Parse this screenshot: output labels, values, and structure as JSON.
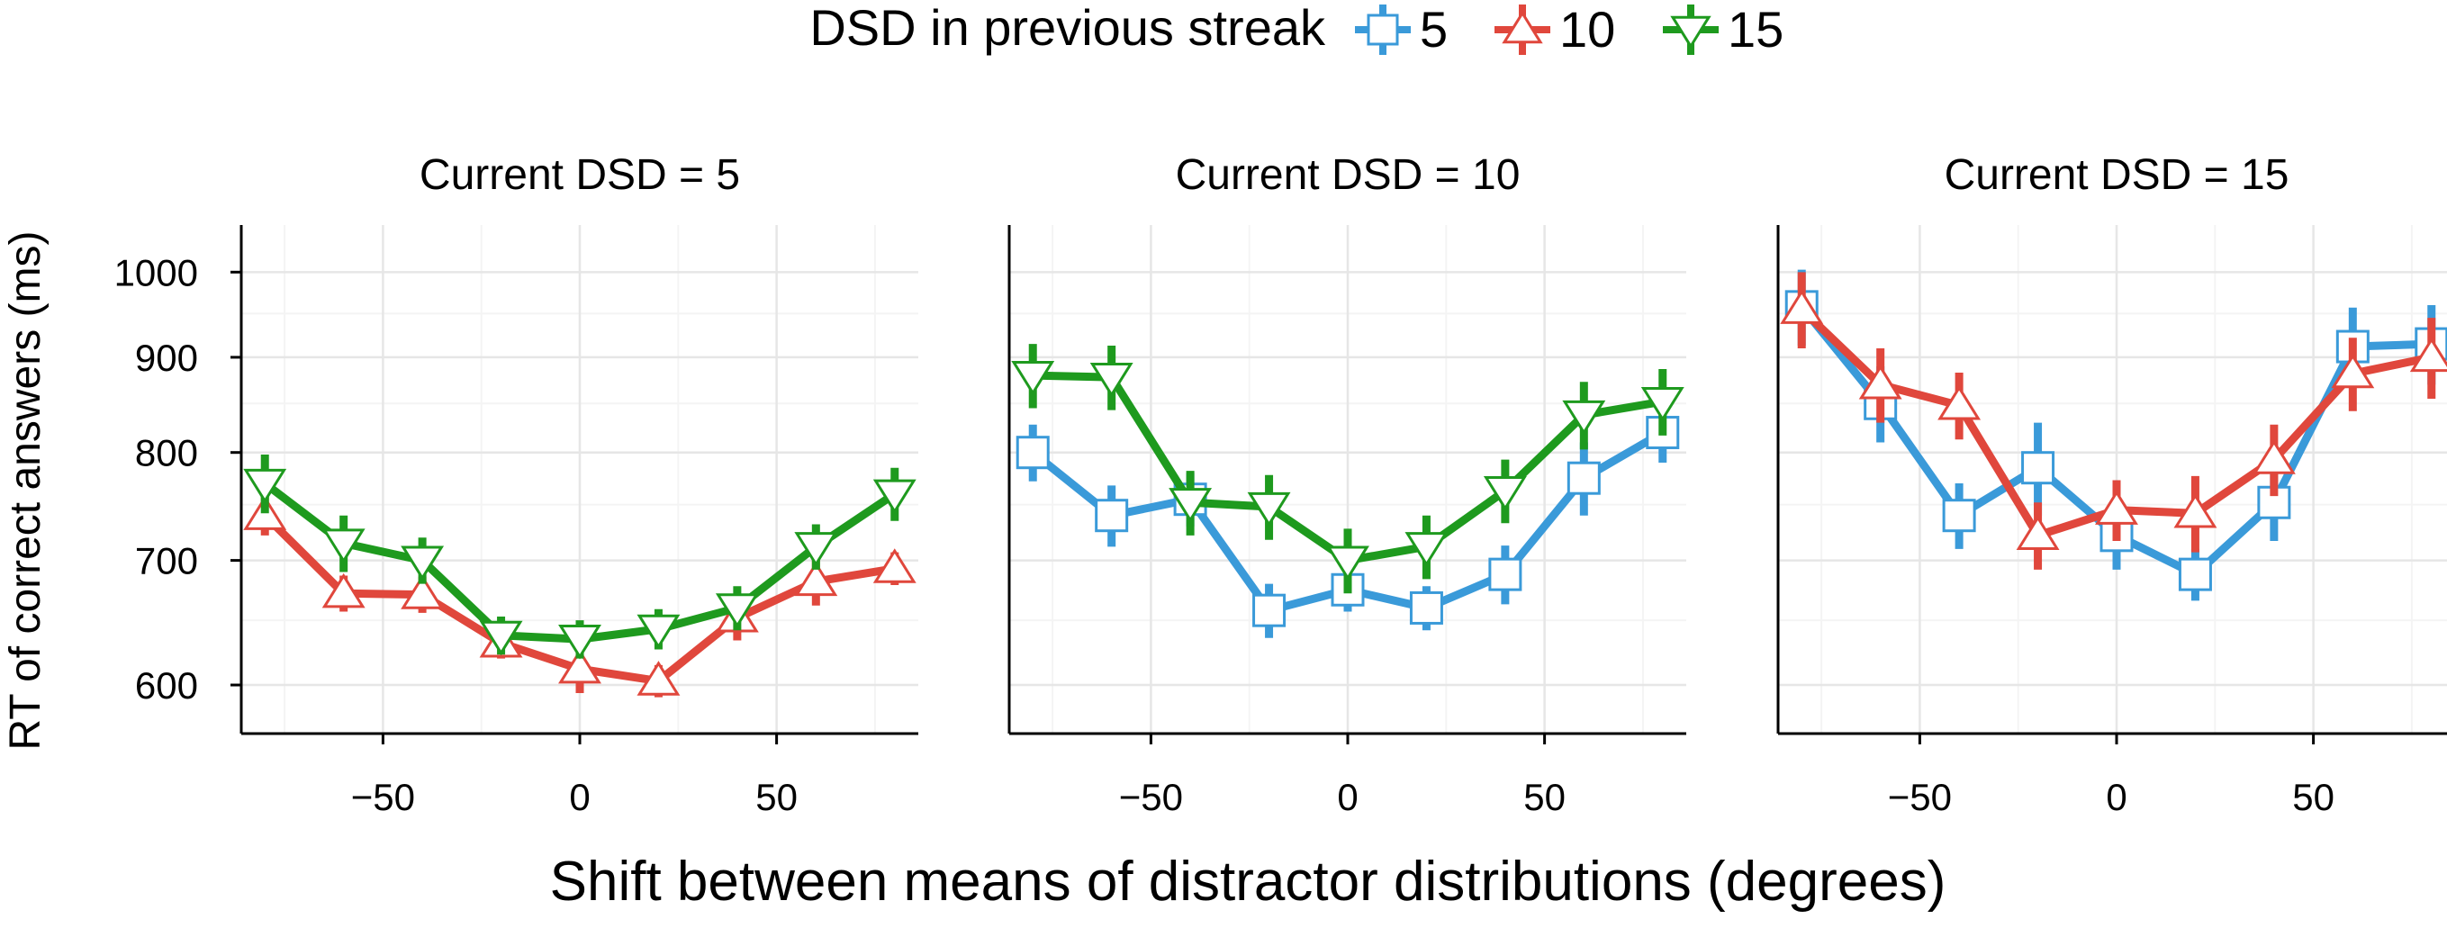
{
  "legend": {
    "title": "DSD in previous streak",
    "entries": [
      {
        "label": "5",
        "color": "#3a9ad9",
        "marker": "square"
      },
      {
        "label": "10",
        "color": "#e0473c",
        "marker": "triangle-up"
      },
      {
        "label": "15",
        "color": "#1e9a1e",
        "marker": "triangle-down"
      }
    ]
  },
  "xlabel": "Shift between means of distractor distributions (degrees)",
  "ylabel": "RT of correct answers (ms)",
  "chart_data": {
    "type": "line",
    "y_scale": "log",
    "xlim": [
      -86,
      86
    ],
    "ylim": [
      565,
      1060
    ],
    "x_ticks": [
      -50,
      0,
      50
    ],
    "x_tick_labels": [
      "−50",
      "0",
      "50"
    ],
    "y_ticks": [
      600,
      700,
      800,
      900,
      1000
    ],
    "y_tick_labels": [
      "600",
      "700",
      "800",
      "900",
      "1000"
    ],
    "grid": true,
    "legend_position": "top",
    "panels": [
      {
        "title": "Current DSD =  5",
        "series": [
          {
            "name": "10",
            "x": [
              -80,
              -60,
              -40,
              -20,
              0,
              20,
              40,
              60,
              80
            ],
            "y": [
              740,
              672,
              671,
              632,
              612,
              603,
              652,
              682,
              693
            ],
            "err": [
              18,
              15,
              15,
              12,
              18,
              12,
              18,
              20,
              14
            ]
          },
          {
            "name": "15",
            "x": [
              -80,
              -60,
              -40,
              -20,
              0,
              20,
              40,
              60,
              80
            ],
            "y": [
              770,
              715,
              700,
              638,
              635,
              643,
              660,
              712,
              760
            ],
            "err": [
              28,
              25,
              20,
              15,
              15,
              16,
              18,
              20,
              25
            ]
          }
        ]
      },
      {
        "title": "Current DSD =  10",
        "series": [
          {
            "name": "5",
            "x": [
              -80,
              -60,
              -40,
              -20,
              0,
              20,
              40,
              60,
              80
            ],
            "y": [
              800,
              740,
              755,
              658,
              675,
              660,
              688,
              775,
              820
            ],
            "err": [
              28,
              28,
              25,
              22,
              18,
              18,
              25,
              35,
              30
            ]
          },
          {
            "name": "15",
            "x": [
              -80,
              -60,
              -40,
              -20,
              0,
              20,
              40,
              60,
              80
            ],
            "y": [
              880,
              878,
              752,
              748,
              700,
              712,
              763,
              838,
              852
            ],
            "err": [
              35,
              35,
              30,
              30,
              28,
              28,
              30,
              35,
              35
            ]
          }
        ]
      },
      {
        "title": "Current DSD =  15",
        "series": [
          {
            "name": "5",
            "x": [
              -80,
              -60,
              -40,
              -20,
              0,
              20,
              40,
              60,
              80
            ],
            "y": [
              958,
              850,
              740,
              785,
              722,
              688,
              752,
              912,
              915
            ],
            "err": [
              45,
              40,
              30,
              45,
              30,
              22,
              35,
              45,
              45
            ]
          },
          {
            "name": "10",
            "x": [
              -80,
              -60,
              -40,
              -20,
              0,
              20,
              40,
              60,
              80
            ],
            "y": [
              955,
              870,
              848,
              722,
              745,
              742,
              793,
              882,
              900
            ],
            "err": [
              45,
              40,
              35,
              30,
              28,
              35,
              35,
              40,
              45
            ]
          }
        ]
      }
    ]
  }
}
